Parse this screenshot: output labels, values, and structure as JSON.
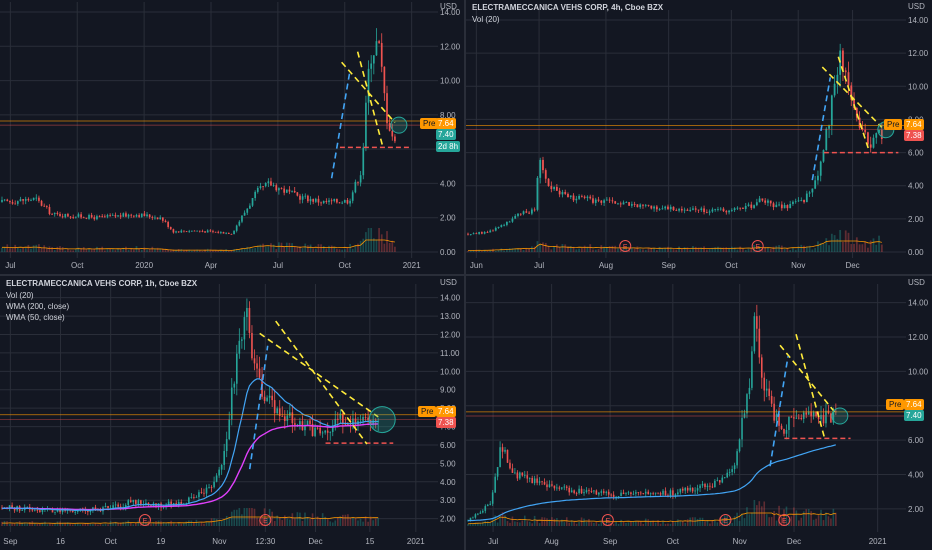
{
  "colors": {
    "background": "#131722",
    "grid": "#2a2e39",
    "up": "#26a69a",
    "down": "#ef5350",
    "volume_up": "#26a69a",
    "volume_down": "#ef5350",
    "trendline": "#ffeb3b",
    "trendline_blue": "#42a5f5",
    "support": "#ef5350",
    "pre_line": "#ff9800",
    "wma200": "#e040fb",
    "wma50": "#42a5f5",
    "vol_ma": "#ff9800",
    "circle": "#26a69a"
  },
  "price_unit": "USD",
  "chart_data": [
    {
      "type": "candlestick",
      "id": "pane-1",
      "title": "",
      "indicators": [],
      "yticks": [
        "14.00",
        "12.00",
        "10.00",
        "8.00",
        "6.00",
        "4.00",
        "2.00",
        "0.00"
      ],
      "ylim": [
        0,
        14
      ],
      "xticks": [
        "Jul",
        "Oct",
        "2020",
        "Apr",
        "Jul",
        "Oct",
        "2021"
      ],
      "badges": {
        "pre": "7.64",
        "price": "7.40",
        "pre_label": "Pre",
        "time": "2d 8h"
      },
      "pre_value": 7.64,
      "close_value": 7.4,
      "support_level": 6.1,
      "events": [],
      "ranges": [
        [
          0,
          2.9
        ],
        [
          0.08,
          3.1
        ],
        [
          0.12,
          2.2
        ],
        [
          0.23,
          2.0
        ],
        [
          0.32,
          2.2
        ],
        [
          0.38,
          2.0
        ],
        [
          0.41,
          1.2
        ],
        [
          0.46,
          1.25
        ],
        [
          0.55,
          1.1
        ],
        [
          0.61,
          3.5
        ],
        [
          0.64,
          4.0
        ],
        [
          0.7,
          3.3
        ],
        [
          0.77,
          2.9
        ],
        [
          0.83,
          3.0
        ],
        [
          0.86,
          4.8
        ],
        [
          0.88,
          11.5
        ],
        [
          0.9,
          12.3
        ],
        [
          0.92,
          8.0
        ],
        [
          0.94,
          6.3
        ],
        [
          0.96,
          7.0
        ],
        [
          1.0,
          7.4
        ]
      ]
    },
    {
      "type": "candlestick",
      "id": "pane-2",
      "title": "ELECTRAMECCANICA VEHS CORP, 4h, Cboe BZX",
      "indicators": [
        "Vol (20)"
      ],
      "yticks": [
        "14.00",
        "12.00",
        "10.00",
        "8.00",
        "6.00",
        "4.00",
        "2.00",
        "0.00"
      ],
      "ylim": [
        0,
        14
      ],
      "xticks": [
        "Jun",
        "Jul",
        "Aug",
        "Sep",
        "Oct",
        "Nov",
        "Dec"
      ],
      "badges": {
        "pre": "7.64",
        "price": "7.38",
        "pre_label": "Pre"
      },
      "pre_value": 7.64,
      "close_value": 7.38,
      "support_level": 6.0,
      "events": [
        "E",
        "E"
      ],
      "ranges": [
        [
          0,
          1.1
        ],
        [
          0.05,
          1.2
        ],
        [
          0.12,
          2.2
        ],
        [
          0.16,
          2.6
        ],
        [
          0.17,
          5.8
        ],
        [
          0.19,
          4.2
        ],
        [
          0.23,
          3.4
        ],
        [
          0.3,
          3.1
        ],
        [
          0.4,
          2.8
        ],
        [
          0.5,
          2.6
        ],
        [
          0.6,
          2.5
        ],
        [
          0.66,
          2.6
        ],
        [
          0.7,
          3.1
        ],
        [
          0.75,
          2.7
        ],
        [
          0.8,
          3.0
        ],
        [
          0.84,
          4.6
        ],
        [
          0.87,
          9.0
        ],
        [
          0.89,
          12.4
        ],
        [
          0.91,
          9.8
        ],
        [
          0.93,
          8.0
        ],
        [
          0.96,
          6.6
        ],
        [
          1.0,
          7.4
        ]
      ]
    },
    {
      "type": "candlestick",
      "id": "pane-3",
      "title": "ELECTRAMECCANICA VEHS CORP, 1h, Cboe BZX",
      "indicators": [
        "Vol (20)",
        "WMA (200, close)",
        "WMA (50, close)"
      ],
      "yticks": [
        "14.00",
        "13.00",
        "12.00",
        "11.00",
        "10.00",
        "9.00",
        "8.00",
        "7.00",
        "6.00",
        "5.00",
        "4.00",
        "3.00",
        "2.00"
      ],
      "ylim": [
        1.6,
        14.2
      ],
      "xticks": [
        "Sep",
        "16",
        "Oct",
        "19",
        "Nov",
        "12:30",
        "Dec",
        "15",
        "2021"
      ],
      "badges": {
        "pre": "7.64",
        "price": "7.38",
        "pre_label": "Pre"
      },
      "pre_value": 7.64,
      "close_value": 7.38,
      "support_level": 6.1,
      "events": [
        "E",
        "E"
      ],
      "ranges": [
        [
          0,
          2.6
        ],
        [
          0.1,
          2.5
        ],
        [
          0.2,
          2.4
        ],
        [
          0.3,
          2.6
        ],
        [
          0.35,
          3.0
        ],
        [
          0.4,
          2.7
        ],
        [
          0.45,
          2.8
        ],
        [
          0.5,
          3.0
        ],
        [
          0.55,
          3.6
        ],
        [
          0.58,
          4.5
        ],
        [
          0.6,
          7.0
        ],
        [
          0.63,
          11.5
        ],
        [
          0.65,
          13.4
        ],
        [
          0.67,
          10.0
        ],
        [
          0.7,
          8.8
        ],
        [
          0.74,
          7.8
        ],
        [
          0.78,
          7.2
        ],
        [
          0.82,
          6.9
        ],
        [
          0.86,
          6.5
        ],
        [
          0.9,
          7.4
        ]
      ]
    },
    {
      "type": "candlestick",
      "id": "pane-4",
      "title": "",
      "indicators": [],
      "yticks": [
        "14.00",
        "12.00",
        "10.00",
        "8.00",
        "6.00",
        "4.00",
        "2.00"
      ],
      "ylim": [
        1.0,
        14.5
      ],
      "xticks": [
        "Jul",
        "Aug",
        "Sep",
        "Oct",
        "Nov",
        "Dec",
        "2021"
      ],
      "badges": {
        "pre": "7.64",
        "price": "7.40",
        "pre_label": "Pre"
      },
      "pre_value": 7.64,
      "close_value": 7.4,
      "support_level": 6.1,
      "events": [
        "E",
        "E",
        "E"
      ],
      "ranges": [
        [
          0,
          1.3
        ],
        [
          0.06,
          2.3
        ],
        [
          0.09,
          5.8
        ],
        [
          0.12,
          4.0
        ],
        [
          0.16,
          3.8
        ],
        [
          0.25,
          3.2
        ],
        [
          0.35,
          2.9
        ],
        [
          0.45,
          2.8
        ],
        [
          0.55,
          2.9
        ],
        [
          0.62,
          3.2
        ],
        [
          0.68,
          3.5
        ],
        [
          0.72,
          4.2
        ],
        [
          0.76,
          8.5
        ],
        [
          0.78,
          12.8
        ],
        [
          0.8,
          9.5
        ],
        [
          0.83,
          7.5
        ],
        [
          0.86,
          6.6
        ],
        [
          0.88,
          7.4
        ]
      ]
    }
  ]
}
